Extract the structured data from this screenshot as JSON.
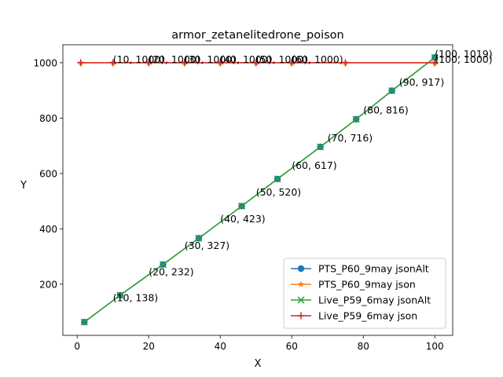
{
  "chart_data": {
    "type": "line",
    "title": "armor_zetanelitedrone_poison",
    "xlabel": "X",
    "ylabel": "Y",
    "xlim": [
      -4,
      105
    ],
    "ylim": [
      15,
      1065
    ],
    "xticks": [
      0,
      20,
      40,
      60,
      80,
      100
    ],
    "yticks": [
      200,
      400,
      600,
      800,
      1000
    ],
    "legend_position": "lower-right",
    "series": [
      {
        "name": "PTS_P60_9may jsonAlt",
        "color": "#1f77b4",
        "marker": "circle",
        "x": [
          2,
          12,
          24,
          34,
          46,
          56,
          68,
          78,
          88,
          100
        ],
        "y": [
          63,
          160,
          271,
          366,
          482,
          580,
          696,
          796,
          899,
          1019
        ]
      },
      {
        "name": "PTS_P60_9may json",
        "color": "#ff7f0e",
        "marker": "star",
        "x": [
          1,
          10,
          20,
          30,
          40,
          50,
          60,
          75,
          100
        ],
        "y": [
          1000,
          1000,
          1000,
          1000,
          1000,
          1000,
          1000,
          1000,
          1000
        ]
      },
      {
        "name": "Live_P59_6may jsonAlt",
        "color": "#2ca02c",
        "marker": "x",
        "x": [
          2,
          12,
          24,
          34,
          46,
          56,
          68,
          78,
          88,
          100
        ],
        "y": [
          63,
          160,
          271,
          366,
          482,
          580,
          696,
          796,
          899,
          1019
        ]
      },
      {
        "name": "Live_P59_6may json",
        "color": "#d62728",
        "marker": "plus",
        "x": [
          1,
          10,
          20,
          30,
          40,
          50,
          60,
          75,
          100
        ],
        "y": [
          1000,
          1000,
          1000,
          1000,
          1000,
          1000,
          1000,
          1000,
          1000
        ]
      }
    ],
    "annotations": [
      {
        "text": "(10, 138)",
        "x": 10,
        "y": 138
      },
      {
        "text": "(20, 232)",
        "x": 20,
        "y": 232
      },
      {
        "text": "(30, 327)",
        "x": 30,
        "y": 327
      },
      {
        "text": "(40, 423)",
        "x": 40,
        "y": 423
      },
      {
        "text": "(50, 520)",
        "x": 50,
        "y": 520
      },
      {
        "text": "(60, 617)",
        "x": 60,
        "y": 617
      },
      {
        "text": "(70, 716)",
        "x": 70,
        "y": 716
      },
      {
        "text": "(80, 816)",
        "x": 80,
        "y": 816
      },
      {
        "text": "(90, 917)",
        "x": 90,
        "y": 917
      },
      {
        "text": "(100, 1019)",
        "x": 100,
        "y": 1019
      },
      {
        "text": "(10, 1000)",
        "x": 10,
        "y": 1000
      },
      {
        "text": "(20, 1000)",
        "x": 20,
        "y": 1000
      },
      {
        "text": "(30, 1000)",
        "x": 30,
        "y": 1000
      },
      {
        "text": "(40, 1000)",
        "x": 40,
        "y": 1000
      },
      {
        "text": "(50, 1000)",
        "x": 50,
        "y": 1000
      },
      {
        "text": "(60, 1000)",
        "x": 60,
        "y": 1000
      },
      {
        "text": "(100, 1000)",
        "x": 100,
        "y": 1000
      }
    ]
  }
}
